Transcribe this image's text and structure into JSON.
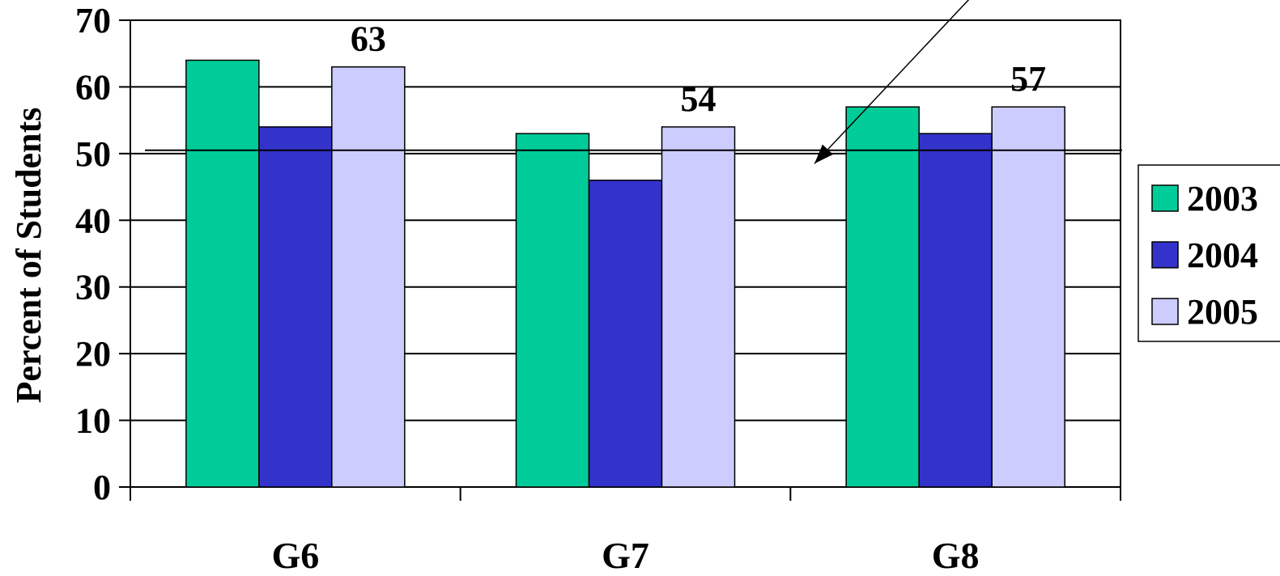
{
  "chart_data": {
    "type": "bar",
    "title": "",
    "xlabel": "",
    "ylabel": "Percent of Students",
    "ylim": [
      0,
      70
    ],
    "yticks": [
      0,
      10,
      20,
      30,
      40,
      50,
      60,
      70
    ],
    "grid": true,
    "legend_position": "right",
    "categories": [
      "G6",
      "G7",
      "G8"
    ],
    "series": [
      {
        "name": "2003",
        "values": [
          64,
          53,
          57
        ],
        "color": "#00CC99"
      },
      {
        "name": "2004",
        "values": [
          54,
          46,
          53
        ],
        "color": "#3333CC"
      },
      {
        "name": "2005",
        "values": [
          63,
          54,
          57
        ],
        "color": "#CCCCFF"
      }
    ],
    "data_labels": [
      {
        "category": "G6",
        "series": "2005",
        "text": "63"
      },
      {
        "category": "G7",
        "series": "2005",
        "text": "54"
      },
      {
        "category": "G8",
        "series": "2005",
        "text": "57"
      }
    ],
    "reference_line": {
      "value": 50.5
    },
    "annotation": {
      "type": "arrow",
      "points_to_value": 48.5
    }
  }
}
